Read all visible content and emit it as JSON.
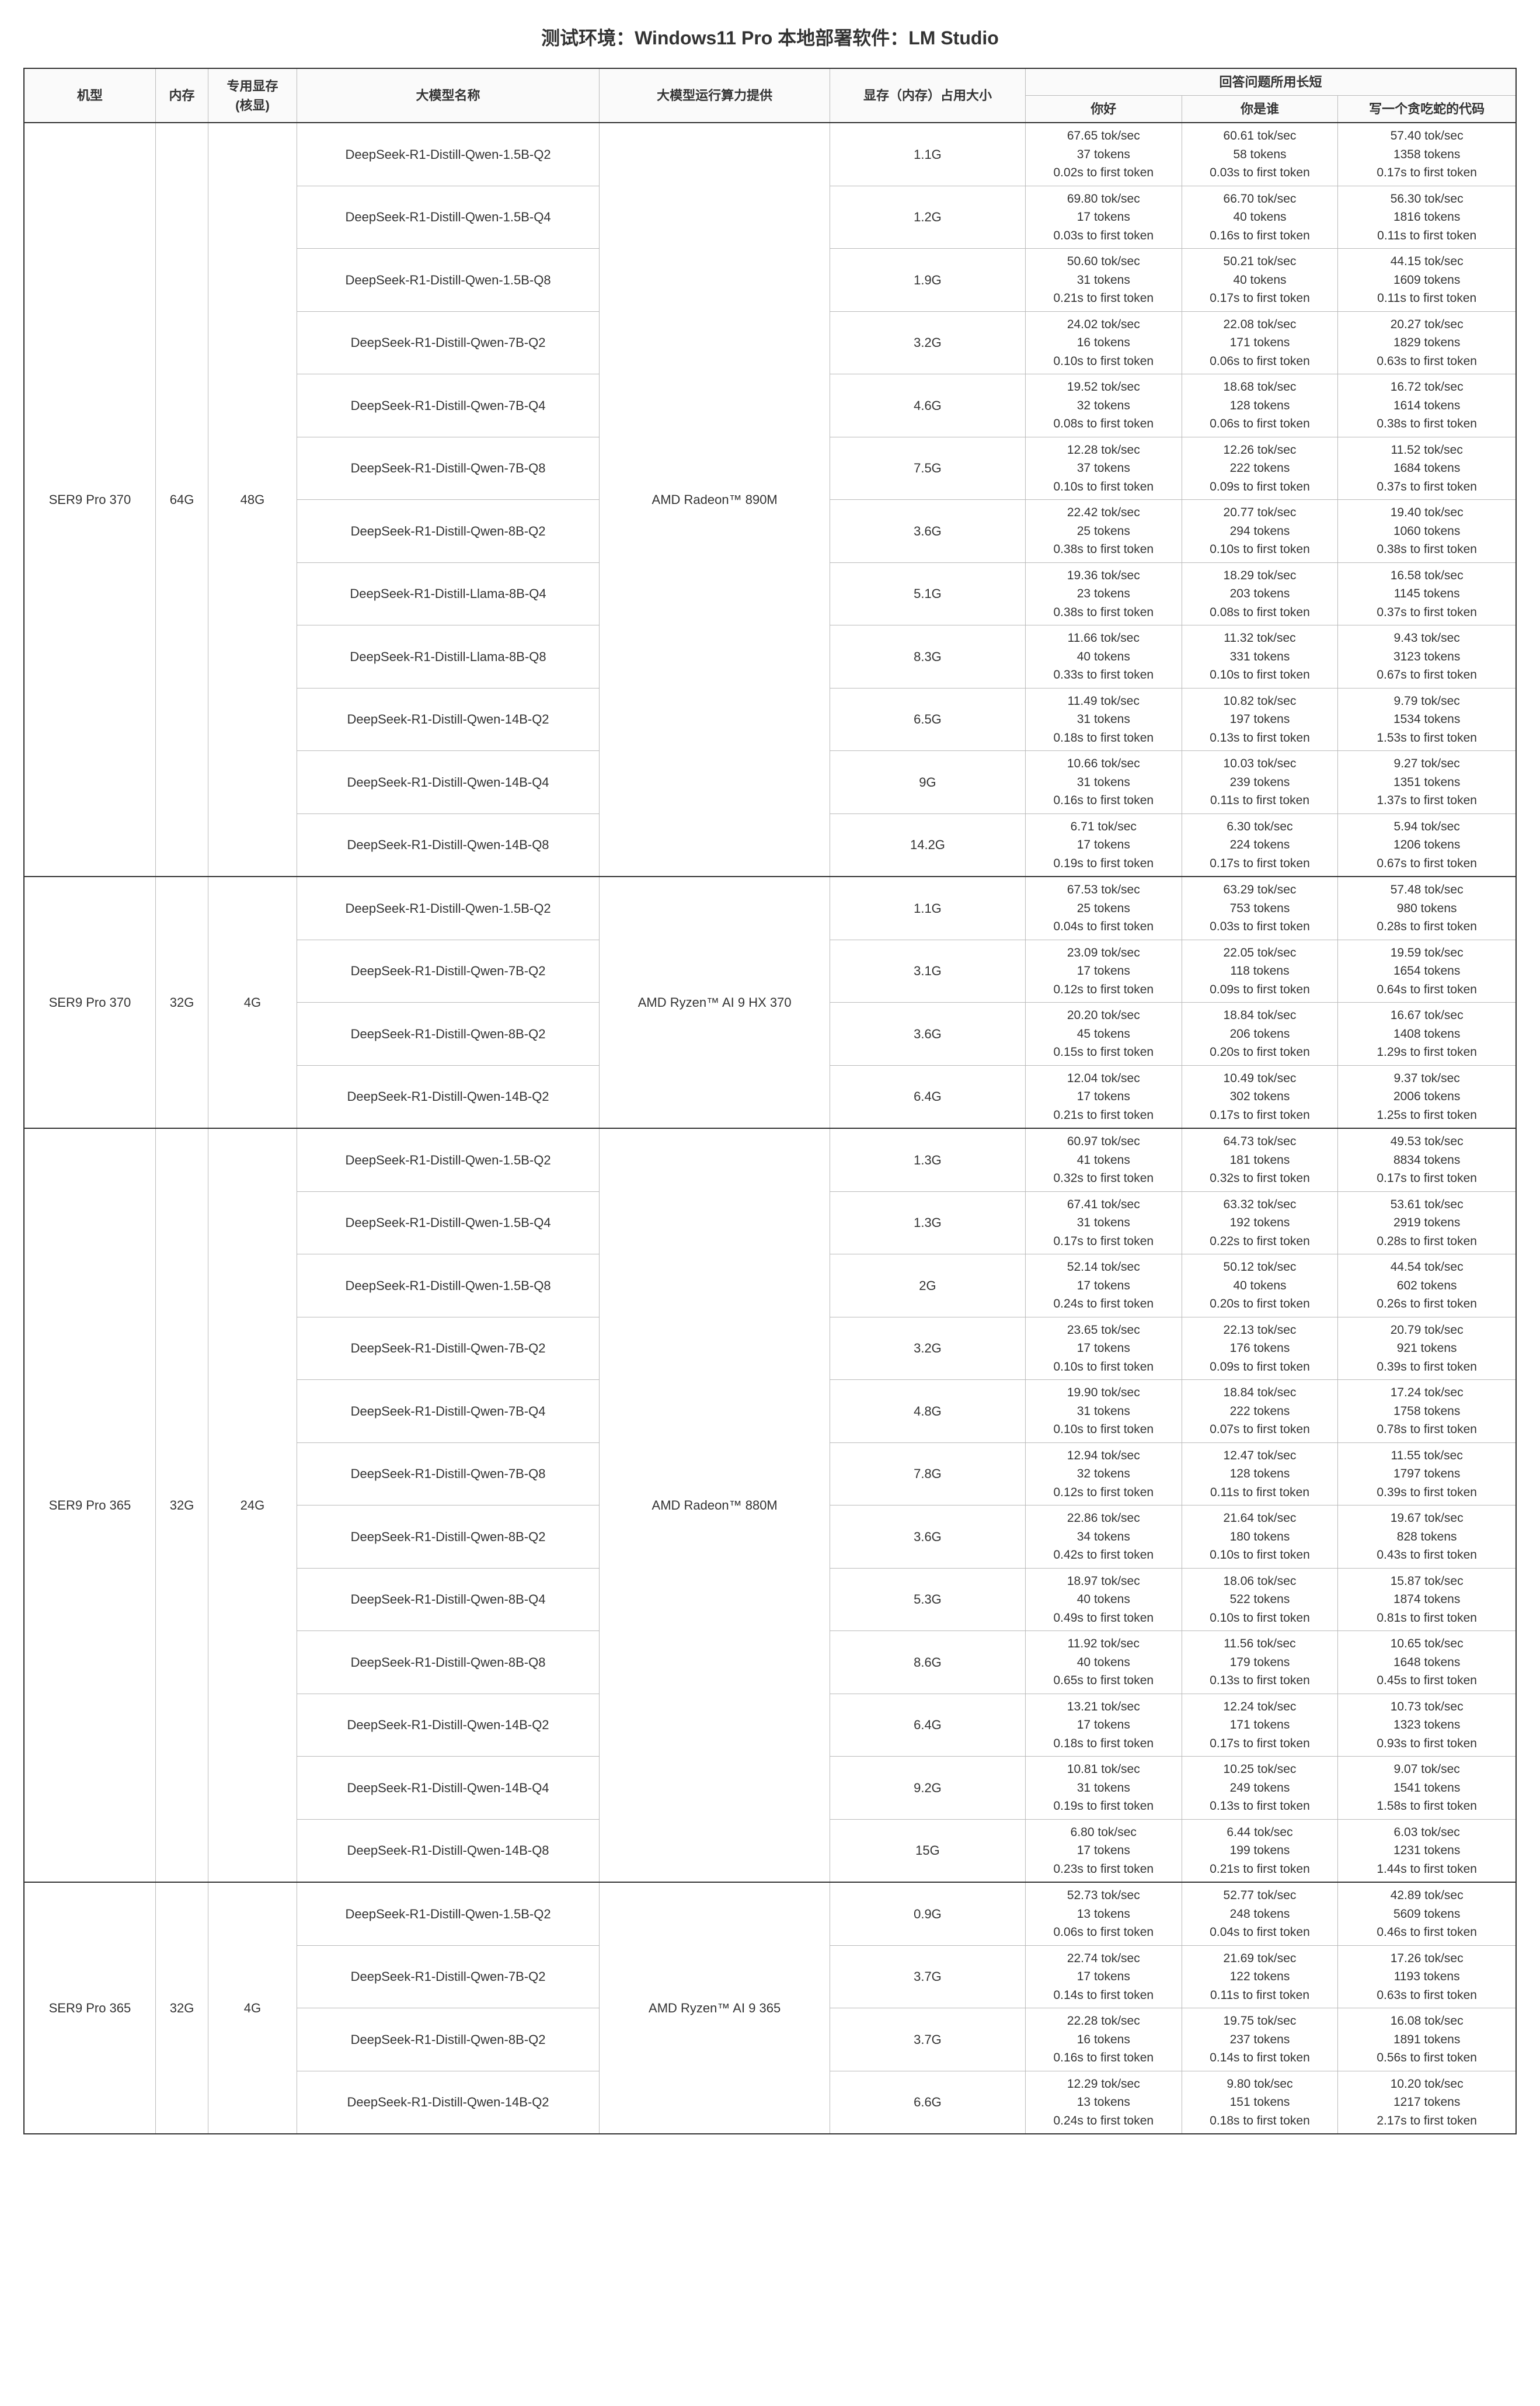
{
  "title": "测试环境：Windows11 Pro  本地部署软件：LM Studio",
  "headers": {
    "machine": "机型",
    "ram": "内存",
    "vram": "专用显存\n(核显)",
    "model": "大模型名称",
    "compute": "大模型运行算力提供",
    "usage": "显存（内存）占用大小",
    "duration_group": "回答问题所用长短",
    "q1": "你好",
    "q2": "你是谁",
    "q3": "写一个贪吃蛇的代码"
  },
  "groups": [
    {
      "machine": "SER9 Pro 370",
      "ram": "64G",
      "vram": "48G",
      "compute": "AMD Radeon™ 890M",
      "rows": [
        {
          "model": "DeepSeek-R1-Distill-Qwen-1.5B-Q2",
          "usage": "1.1G",
          "q1": [
            "67.65 tok/sec",
            "37 tokens",
            "0.02s to first token"
          ],
          "q2": [
            "60.61 tok/sec",
            "58 tokens",
            "0.03s to first token"
          ],
          "q3": [
            "57.40 tok/sec",
            "1358 tokens",
            "0.17s to first token"
          ]
        },
        {
          "model": "DeepSeek-R1-Distill-Qwen-1.5B-Q4",
          "usage": "1.2G",
          "q1": [
            "69.80 tok/sec",
            "17 tokens",
            "0.03s to first token"
          ],
          "q2": [
            "66.70 tok/sec",
            "40 tokens",
            "0.16s to first token"
          ],
          "q3": [
            "56.30 tok/sec",
            "1816 tokens",
            "0.11s to first token"
          ]
        },
        {
          "model": "DeepSeek-R1-Distill-Qwen-1.5B-Q8",
          "usage": "1.9G",
          "q1": [
            "50.60 tok/sec",
            "31 tokens",
            "0.21s to first token"
          ],
          "q2": [
            "50.21 tok/sec",
            "40 tokens",
            "0.17s to first token"
          ],
          "q3": [
            "44.15 tok/sec",
            "1609 tokens",
            "0.11s to first token"
          ]
        },
        {
          "model": "DeepSeek-R1-Distill-Qwen-7B-Q2",
          "usage": "3.2G",
          "q1": [
            "24.02 tok/sec",
            "16 tokens",
            "0.10s to first token"
          ],
          "q2": [
            "22.08 tok/sec",
            "171 tokens",
            "0.06s to first token"
          ],
          "q3": [
            "20.27 tok/sec",
            "1829 tokens",
            "0.63s to first token"
          ]
        },
        {
          "model": "DeepSeek-R1-Distill-Qwen-7B-Q4",
          "usage": "4.6G",
          "q1": [
            "19.52 tok/sec",
            "32 tokens",
            "0.08s to first token"
          ],
          "q2": [
            "18.68 tok/sec",
            "128 tokens",
            "0.06s to first token"
          ],
          "q3": [
            "16.72 tok/sec",
            "1614 tokens",
            "0.38s to first token"
          ]
        },
        {
          "model": "DeepSeek-R1-Distill-Qwen-7B-Q8",
          "usage": "7.5G",
          "q1": [
            "12.28 tok/sec",
            "37 tokens",
            "0.10s to first token"
          ],
          "q2": [
            "12.26 tok/sec",
            "222 tokens",
            "0.09s to first token"
          ],
          "q3": [
            "11.52 tok/sec",
            "1684 tokens",
            "0.37s to first token"
          ]
        },
        {
          "model": "DeepSeek-R1-Distill-Qwen-8B-Q2",
          "usage": "3.6G",
          "q1": [
            "22.42 tok/sec",
            "25 tokens",
            "0.38s to first token"
          ],
          "q2": [
            "20.77 tok/sec",
            "294 tokens",
            "0.10s to first token"
          ],
          "q3": [
            "19.40 tok/sec",
            "1060 tokens",
            "0.38s to first token"
          ]
        },
        {
          "model": "DeepSeek-R1-Distill-Llama-8B-Q4",
          "usage": "5.1G",
          "q1": [
            "19.36 tok/sec",
            "23 tokens",
            "0.38s to first token"
          ],
          "q2": [
            "18.29 tok/sec",
            "203 tokens",
            "0.08s to first token"
          ],
          "q3": [
            "16.58 tok/sec",
            "1145 tokens",
            "0.37s to first token"
          ]
        },
        {
          "model": "DeepSeek-R1-Distill-Llama-8B-Q8",
          "usage": "8.3G",
          "q1": [
            "11.66 tok/sec",
            "40 tokens",
            "0.33s to first token"
          ],
          "q2": [
            "11.32 tok/sec",
            "331 tokens",
            "0.10s to first token"
          ],
          "q3": [
            "9.43 tok/sec",
            "3123 tokens",
            "0.67s to first token"
          ]
        },
        {
          "model": "DeepSeek-R1-Distill-Qwen-14B-Q2",
          "usage": "6.5G",
          "q1": [
            "11.49 tok/sec",
            "31 tokens",
            "0.18s to first token"
          ],
          "q2": [
            "10.82 tok/sec",
            "197 tokens",
            "0.13s to first token"
          ],
          "q3": [
            "9.79 tok/sec",
            "1534 tokens",
            "1.53s to first token"
          ]
        },
        {
          "model": "DeepSeek-R1-Distill-Qwen-14B-Q4",
          "usage": "9G",
          "q1": [
            "10.66 tok/sec",
            "31 tokens",
            "0.16s to first token"
          ],
          "q2": [
            "10.03 tok/sec",
            "239 tokens",
            "0.11s to first token"
          ],
          "q3": [
            "9.27 tok/sec",
            "1351 tokens",
            "1.37s to first token"
          ]
        },
        {
          "model": "DeepSeek-R1-Distill-Qwen-14B-Q8",
          "usage": "14.2G",
          "q1": [
            "6.71 tok/sec",
            "17 tokens",
            "0.19s to first token"
          ],
          "q2": [
            "6.30 tok/sec",
            "224 tokens",
            "0.17s to first token"
          ],
          "q3": [
            "5.94 tok/sec",
            "1206 tokens",
            "0.67s to first token"
          ]
        }
      ]
    },
    {
      "machine": "SER9 Pro 370",
      "ram": "32G",
      "vram": "4G",
      "compute": "AMD Ryzen™ AI 9 HX 370",
      "rows": [
        {
          "model": "DeepSeek-R1-Distill-Qwen-1.5B-Q2",
          "usage": "1.1G",
          "q1": [
            "67.53 tok/sec",
            "25 tokens",
            "0.04s to first token"
          ],
          "q2": [
            "63.29 tok/sec",
            "753 tokens",
            "0.03s to first token"
          ],
          "q3": [
            "57.48 tok/sec",
            "980 tokens",
            "0.28s to first token"
          ]
        },
        {
          "model": "DeepSeek-R1-Distill-Qwen-7B-Q2",
          "usage": "3.1G",
          "q1": [
            "23.09 tok/sec",
            "17 tokens",
            "0.12s to first token"
          ],
          "q2": [
            "22.05 tok/sec",
            "118 tokens",
            "0.09s to first token"
          ],
          "q3": [
            "19.59 tok/sec",
            "1654 tokens",
            "0.64s to first token"
          ]
        },
        {
          "model": "DeepSeek-R1-Distill-Qwen-8B-Q2",
          "usage": "3.6G",
          "q1": [
            "20.20 tok/sec",
            "45 tokens",
            "0.15s to first token"
          ],
          "q2": [
            "18.84 tok/sec",
            "206 tokens",
            "0.20s to first token"
          ],
          "q3": [
            "16.67 tok/sec",
            "1408 tokens",
            "1.29s to first token"
          ]
        },
        {
          "model": "DeepSeek-R1-Distill-Qwen-14B-Q2",
          "usage": "6.4G",
          "q1": [
            "12.04 tok/sec",
            "17 tokens",
            "0.21s to first token"
          ],
          "q2": [
            "10.49 tok/sec",
            "302 tokens",
            "0.17s to first token"
          ],
          "q3": [
            "9.37 tok/sec",
            "2006 tokens",
            "1.25s to first token"
          ]
        }
      ]
    },
    {
      "machine": "SER9 Pro 365",
      "ram": "32G",
      "vram": "24G",
      "compute": "AMD Radeon™ 880M",
      "rows": [
        {
          "model": "DeepSeek-R1-Distill-Qwen-1.5B-Q2",
          "usage": "1.3G",
          "q1": [
            "60.97 tok/sec",
            "41 tokens",
            "0.32s to first token"
          ],
          "q2": [
            "64.73 tok/sec",
            "181 tokens",
            "0.32s to first token"
          ],
          "q3": [
            "49.53 tok/sec",
            "8834 tokens",
            "0.17s to first token"
          ]
        },
        {
          "model": "DeepSeek-R1-Distill-Qwen-1.5B-Q4",
          "usage": "1.3G",
          "q1": [
            "67.41 tok/sec",
            "31 tokens",
            "0.17s to first token"
          ],
          "q2": [
            "63.32 tok/sec",
            "192 tokens",
            "0.22s to first token"
          ],
          "q3": [
            "53.61 tok/sec",
            "2919 tokens",
            "0.28s to first token"
          ]
        },
        {
          "model": "DeepSeek-R1-Distill-Qwen-1.5B-Q8",
          "usage": "2G",
          "q1": [
            "52.14 tok/sec",
            "17 tokens",
            "0.24s to first token"
          ],
          "q2": [
            "50.12 tok/sec",
            "40 tokens",
            "0.20s to first token"
          ],
          "q3": [
            "44.54 tok/sec",
            "602 tokens",
            "0.26s to first token"
          ]
        },
        {
          "model": "DeepSeek-R1-Distill-Qwen-7B-Q2",
          "usage": "3.2G",
          "q1": [
            "23.65 tok/sec",
            "17 tokens",
            "0.10s to first token"
          ],
          "q2": [
            "22.13 tok/sec",
            "176 tokens",
            "0.09s to first token"
          ],
          "q3": [
            "20.79 tok/sec",
            "921 tokens",
            "0.39s to first token"
          ]
        },
        {
          "model": "DeepSeek-R1-Distill-Qwen-7B-Q4",
          "usage": "4.8G",
          "q1": [
            "19.90 tok/sec",
            "31 tokens",
            "0.10s to first token"
          ],
          "q2": [
            "18.84 tok/sec",
            "222 tokens",
            "0.07s to first token"
          ],
          "q3": [
            "17.24 tok/sec",
            "1758 tokens",
            "0.78s to first token"
          ]
        },
        {
          "model": "DeepSeek-R1-Distill-Qwen-7B-Q8",
          "usage": "7.8G",
          "q1": [
            "12.94 tok/sec",
            "32 tokens",
            "0.12s to first token"
          ],
          "q2": [
            "12.47 tok/sec",
            "128 tokens",
            "0.11s to first token"
          ],
          "q3": [
            "11.55 tok/sec",
            "1797 tokens",
            "0.39s to first token"
          ]
        },
        {
          "model": "DeepSeek-R1-Distill-Qwen-8B-Q2",
          "usage": "3.6G",
          "q1": [
            "22.86 tok/sec",
            "34 tokens",
            "0.42s to first token"
          ],
          "q2": [
            "21.64 tok/sec",
            "180 tokens",
            "0.10s to first token"
          ],
          "q3": [
            "19.67 tok/sec",
            "828 tokens",
            "0.43s to first token"
          ]
        },
        {
          "model": "DeepSeek-R1-Distill-Qwen-8B-Q4",
          "usage": "5.3G",
          "q1": [
            "18.97 tok/sec",
            "40 tokens",
            "0.49s to first token"
          ],
          "q2": [
            "18.06 tok/sec",
            "522 tokens",
            "0.10s to first token"
          ],
          "q3": [
            "15.87 tok/sec",
            "1874 tokens",
            "0.81s to first token"
          ]
        },
        {
          "model": "DeepSeek-R1-Distill-Qwen-8B-Q8",
          "usage": "8.6G",
          "q1": [
            "11.92 tok/sec",
            "40 tokens",
            "0.65s to first token"
          ],
          "q2": [
            "11.56 tok/sec",
            "179 tokens",
            "0.13s to first token"
          ],
          "q3": [
            "10.65 tok/sec",
            "1648 tokens",
            "0.45s to first token"
          ]
        },
        {
          "model": "DeepSeek-R1-Distill-Qwen-14B-Q2",
          "usage": "6.4G",
          "q1": [
            "13.21 tok/sec",
            "17 tokens",
            "0.18s to first token"
          ],
          "q2": [
            "12.24 tok/sec",
            "171 tokens",
            "0.17s to first token"
          ],
          "q3": [
            "10.73 tok/sec",
            "1323 tokens",
            "0.93s to first token"
          ]
        },
        {
          "model": "DeepSeek-R1-Distill-Qwen-14B-Q4",
          "usage": "9.2G",
          "q1": [
            "10.81 tok/sec",
            "31 tokens",
            "0.19s to first token"
          ],
          "q2": [
            "10.25 tok/sec",
            "249 tokens",
            "0.13s to first token"
          ],
          "q3": [
            "9.07 tok/sec",
            "1541 tokens",
            "1.58s to first token"
          ]
        },
        {
          "model": "DeepSeek-R1-Distill-Qwen-14B-Q8",
          "usage": "15G",
          "q1": [
            "6.80 tok/sec",
            "17 tokens",
            "0.23s to first token"
          ],
          "q2": [
            "6.44 tok/sec",
            "199 tokens",
            "0.21s to first token"
          ],
          "q3": [
            "6.03 tok/sec",
            "1231 tokens",
            "1.44s to first token"
          ]
        }
      ]
    },
    {
      "machine": "SER9 Pro 365",
      "ram": "32G",
      "vram": "4G",
      "compute": "AMD Ryzen™ AI 9 365",
      "rows": [
        {
          "model": "DeepSeek-R1-Distill-Qwen-1.5B-Q2",
          "usage": "0.9G",
          "q1": [
            "52.73 tok/sec",
            "13 tokens",
            "0.06s to first token"
          ],
          "q2": [
            "52.77 tok/sec",
            "248 tokens",
            "0.04s to first token"
          ],
          "q3": [
            "42.89 tok/sec",
            "5609 tokens",
            "0.46s to first token"
          ]
        },
        {
          "model": "DeepSeek-R1-Distill-Qwen-7B-Q2",
          "usage": "3.7G",
          "q1": [
            "22.74 tok/sec",
            "17 tokens",
            "0.14s to first token"
          ],
          "q2": [
            "21.69 tok/sec",
            "122 tokens",
            "0.11s to first token"
          ],
          "q3": [
            "17.26 tok/sec",
            "1193 tokens",
            "0.63s to first token"
          ]
        },
        {
          "model": "DeepSeek-R1-Distill-Qwen-8B-Q2",
          "usage": "3.7G",
          "q1": [
            "22.28 tok/sec",
            "16 tokens",
            "0.16s to first token"
          ],
          "q2": [
            "19.75 tok/sec",
            "237 tokens",
            "0.14s to first token"
          ],
          "q3": [
            "16.08 tok/sec",
            "1891 tokens",
            "0.56s to first token"
          ]
        },
        {
          "model": "DeepSeek-R1-Distill-Qwen-14B-Q2",
          "usage": "6.6G",
          "q1": [
            "12.29 tok/sec",
            "13 tokens",
            "0.24s to first token"
          ],
          "q2": [
            "9.80 tok/sec",
            "151 tokens",
            "0.18s to first token"
          ],
          "q3": [
            "10.20 tok/sec",
            "1217 tokens",
            "2.17s to first token"
          ]
        }
      ]
    }
  ]
}
